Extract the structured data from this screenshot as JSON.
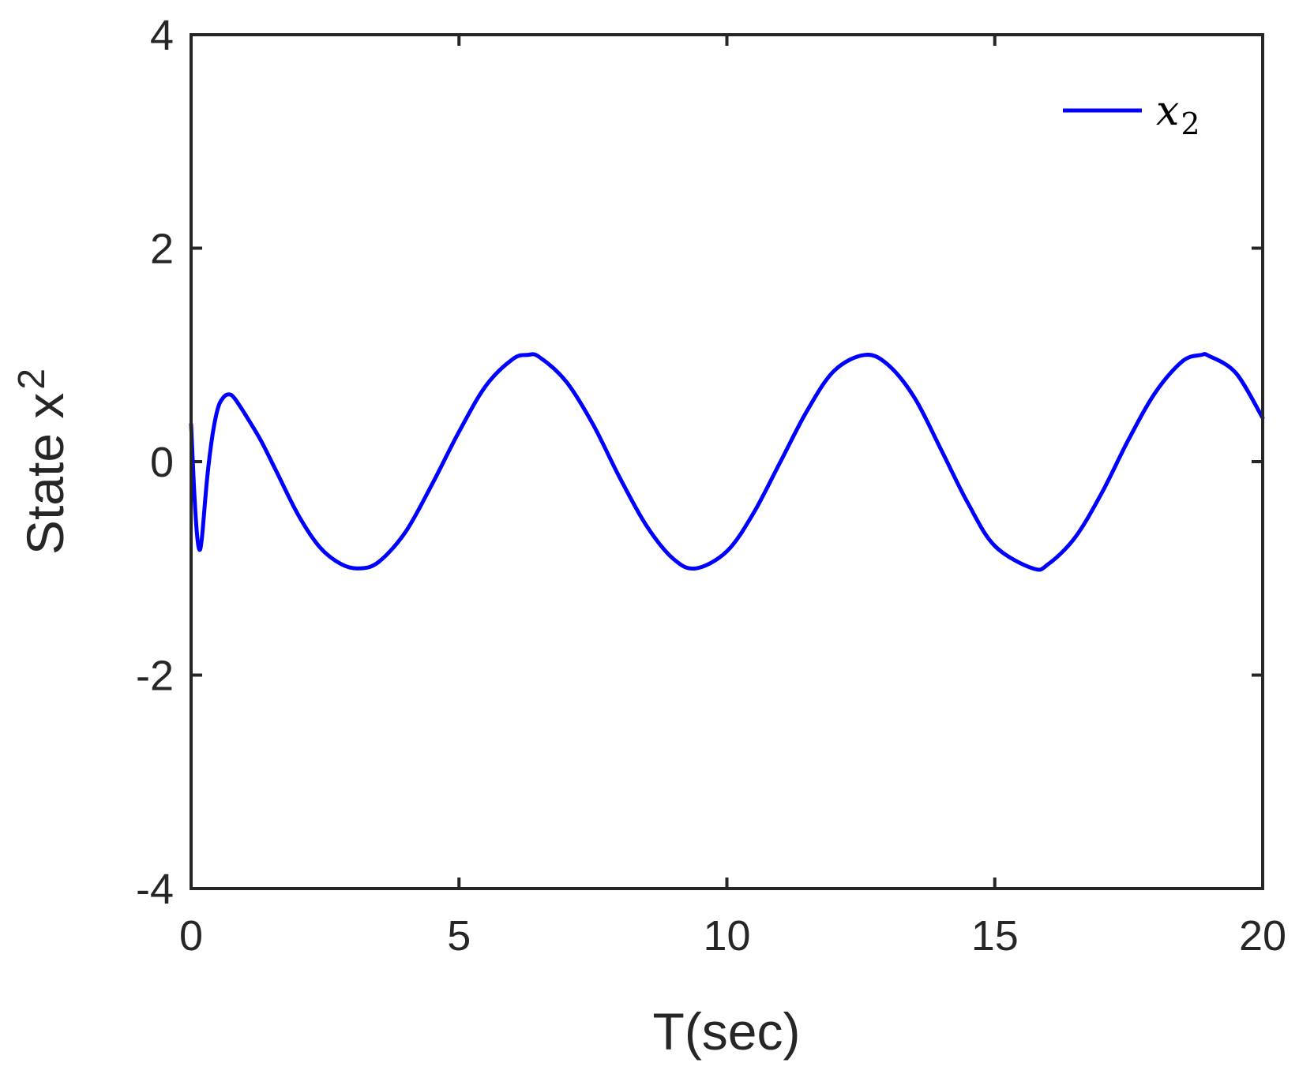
{
  "chart_data": {
    "type": "line",
    "title": "",
    "xlabel": "T(sec)",
    "ylabel": {
      "text": "State x",
      "subscript": "2"
    },
    "xlim": [
      0,
      20
    ],
    "ylim": [
      -4,
      4
    ],
    "xticks": [
      0,
      5,
      10,
      15,
      20
    ],
    "xtick_labels": [
      "0",
      "5",
      "10",
      "15",
      "20"
    ],
    "yticks": [
      -4,
      -2,
      0,
      2,
      4
    ],
    "ytick_labels": [
      "-4",
      "-2",
      "0",
      "2",
      "4"
    ],
    "grid": false,
    "legend": {
      "position": "top-right"
    },
    "series": [
      {
        "name": {
          "base": "x",
          "subscript": "2"
        },
        "color": "#0000FF",
        "x": [
          0,
          0.05,
          0.1,
          0.15,
          0.2,
          0.3,
          0.4,
          0.5,
          0.6,
          0.7,
          0.8,
          1.0,
          1.3,
          1.6,
          2.0,
          2.4,
          2.8,
          3.14,
          3.5,
          4.0,
          4.5,
          5.0,
          5.5,
          6.0,
          6.28,
          6.5,
          7.0,
          7.5,
          8.0,
          8.5,
          9.0,
          9.42,
          10.0,
          10.5,
          11.0,
          11.5,
          12.0,
          12.57,
          13.0,
          13.5,
          14.0,
          14.5,
          15.0,
          15.71,
          16.0,
          16.5,
          17.0,
          17.5,
          18.0,
          18.5,
          18.85,
          19.0,
          19.5,
          20.0
        ],
        "y": [
          0.35,
          -0.2,
          -0.62,
          -0.82,
          -0.72,
          -0.15,
          0.25,
          0.5,
          0.6,
          0.63,
          0.6,
          0.45,
          0.2,
          -0.1,
          -0.5,
          -0.8,
          -0.96,
          -1.0,
          -0.94,
          -0.66,
          -0.21,
          0.28,
          0.71,
          0.96,
          1.0,
          0.98,
          0.75,
          0.35,
          -0.15,
          -0.6,
          -0.91,
          -1.0,
          -0.84,
          -0.48,
          0.0,
          0.48,
          0.85,
          1.0,
          0.91,
          0.6,
          0.11,
          -0.39,
          -0.79,
          -1.0,
          -0.96,
          -0.71,
          -0.29,
          0.21,
          0.65,
          0.94,
          1.0,
          0.99,
          0.83,
          0.41
        ]
      }
    ]
  }
}
